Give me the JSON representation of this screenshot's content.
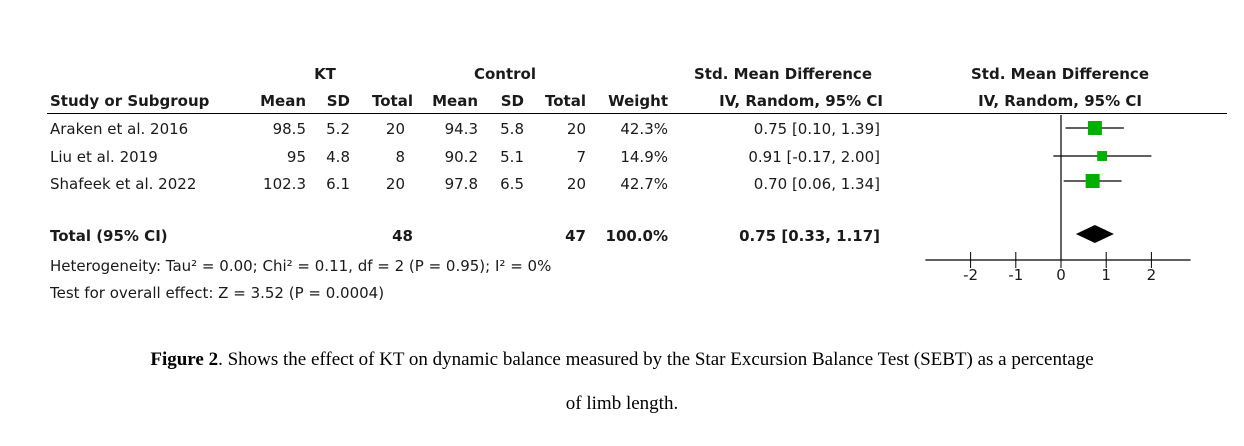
{
  "table": {
    "group_kt": "KT",
    "group_control": "Control",
    "smd_header": "Std. Mean Difference",
    "headers": {
      "study": "Study or Subgroup",
      "mean": "Mean",
      "sd": "SD",
      "total": "Total",
      "weight": "Weight",
      "method": "IV, Random, 95% CI"
    },
    "rows": [
      {
        "study": "Araken et al. 2016",
        "kt_mean": "98.5",
        "kt_sd": "5.2",
        "kt_total": "20",
        "c_mean": "94.3",
        "c_sd": "5.8",
        "c_total": "20",
        "weight": "42.3%",
        "ci": "0.75 [0.10, 1.39]"
      },
      {
        "study": "Liu et al. 2019",
        "kt_mean": "95",
        "kt_sd": "4.8",
        "kt_total": "8",
        "c_mean": "90.2",
        "c_sd": "5.1",
        "c_total": "7",
        "weight": "14.9%",
        "ci": "0.91 [-0.17, 2.00]"
      },
      {
        "study": "Shafeek et al. 2022",
        "kt_mean": "102.3",
        "kt_sd": "6.1",
        "kt_total": "20",
        "c_mean": "97.8",
        "c_sd": "6.5",
        "c_total": "20",
        "weight": "42.7%",
        "ci": "0.70 [0.06, 1.34]"
      }
    ],
    "total": {
      "label": "Total (95% CI)",
      "kt_total": "48",
      "c_total": "47",
      "weight": "100.0%",
      "ci": "0.75 [0.33, 1.17]"
    },
    "heterogeneity": "Heterogeneity: Tau² = 0.00; Chi² = 0.11, df = 2 (P = 0.95); I² = 0%",
    "overall": "Test for overall effect: Z = 3.52 (P = 0.0004)"
  },
  "chart_data": {
    "type": "scatter",
    "subtype": "forest-plot",
    "title": "Std. Mean Difference",
    "subtitle": "IV, Random, 95% CI",
    "xlim": [
      -3,
      3
    ],
    "ticks": [
      -2,
      -1,
      0,
      1,
      2
    ],
    "tick_labels": [
      "-2",
      "-1",
      "0",
      "1",
      "2"
    ],
    "marker_color": "#00b000",
    "studies": [
      {
        "name": "Araken et al. 2016",
        "smd": 0.75,
        "lower": 0.1,
        "upper": 1.39,
        "weight": 42.3
      },
      {
        "name": "Liu et al. 2019",
        "smd": 0.91,
        "lower": -0.17,
        "upper": 2.0,
        "weight": 14.9
      },
      {
        "name": "Shafeek et al. 2022",
        "smd": 0.7,
        "lower": 0.06,
        "upper": 1.34,
        "weight": 42.7
      }
    ],
    "pooled": {
      "smd": 0.75,
      "lower": 0.33,
      "upper": 1.17
    }
  },
  "caption": {
    "label": "Figure 2",
    "text": ". Shows the effect of KT on dynamic balance measured by the Star Excursion Balance Test (SEBT) as a percentage",
    "line2": "of limb length."
  }
}
